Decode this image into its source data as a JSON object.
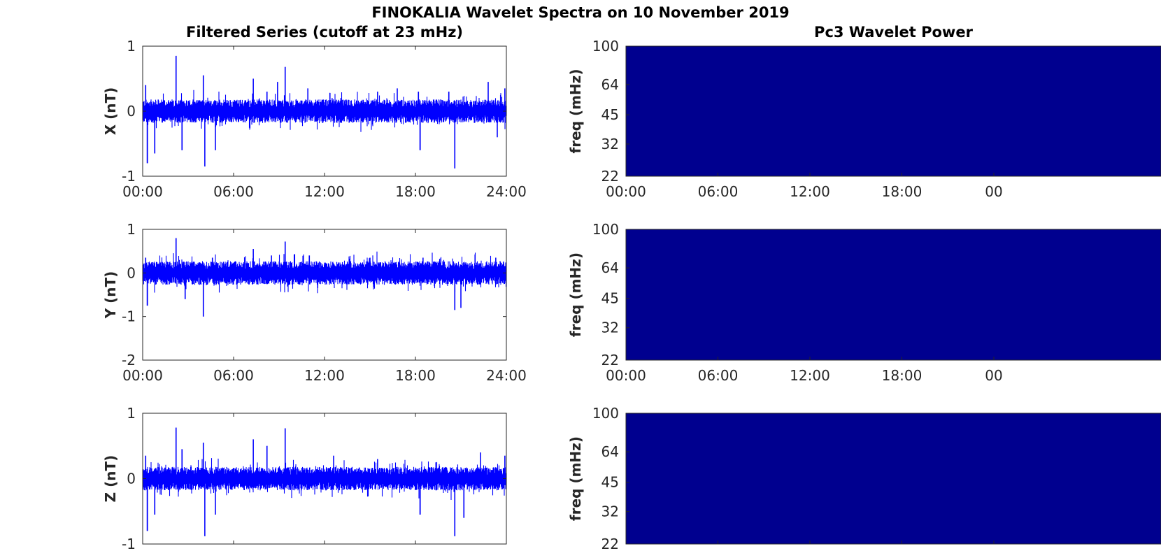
{
  "title": "FINOKALIA Wavelet Spectra on 10 November 2019",
  "left_column_title": "Filtered Series (cutoff at 23 mHz)",
  "right_column_title": "Pc3 Wavelet Power",
  "colors": {
    "series": "#0000ff",
    "power_fill": "#00008f",
    "axis": "#262626"
  },
  "chart_data": [
    {
      "type": "line",
      "component": "X",
      "ylabel": "X (nT)",
      "ylim": [
        -1,
        1
      ],
      "yticks": [
        "1",
        "0",
        "-1"
      ],
      "xticks": [
        "00:00",
        "06:00",
        "12:00",
        "18:00",
        "24:00"
      ],
      "xlim": [
        0,
        24
      ],
      "noise_band": 0.12,
      "spikes": [
        [
          0.2,
          0.4
        ],
        [
          0.3,
          -0.8
        ],
        [
          0.8,
          -0.65
        ],
        [
          2.2,
          0.85
        ],
        [
          2.6,
          -0.6
        ],
        [
          4.0,
          0.55
        ],
        [
          4.1,
          -0.85
        ],
        [
          4.8,
          -0.6
        ],
        [
          7.3,
          0.5
        ],
        [
          8.2,
          0.3
        ],
        [
          8.9,
          0.45
        ],
        [
          9.4,
          0.68
        ],
        [
          10.9,
          0.35
        ],
        [
          12.5,
          0.2
        ],
        [
          15.5,
          0.3
        ],
        [
          16.8,
          0.35
        ],
        [
          18.2,
          0.3
        ],
        [
          18.3,
          -0.6
        ],
        [
          20.2,
          0.3
        ],
        [
          20.6,
          -0.88
        ],
        [
          22.8,
          0.45
        ],
        [
          23.4,
          -0.4
        ],
        [
          23.9,
          0.35
        ]
      ]
    },
    {
      "type": "line",
      "component": "Y",
      "ylabel": "Y (nT)",
      "ylim": [
        -2,
        1
      ],
      "yticks": [
        "1",
        "0",
        "-1",
        "-2"
      ],
      "xticks": [
        "00:00",
        "06:00",
        "12:00",
        "18:00",
        "24:00"
      ],
      "xlim": [
        0,
        24
      ],
      "noise_band": 0.18,
      "spikes": [
        [
          0.2,
          0.35
        ],
        [
          0.3,
          -0.75
        ],
        [
          2.2,
          0.8
        ],
        [
          2.8,
          -0.6
        ],
        [
          4.0,
          -1.0
        ],
        [
          4.6,
          0.35
        ],
        [
          7.3,
          0.55
        ],
        [
          8.5,
          0.4
        ],
        [
          9.4,
          0.72
        ],
        [
          11.0,
          0.4
        ],
        [
          15.0,
          0.35
        ],
        [
          18.5,
          0.35
        ],
        [
          20.6,
          -0.85
        ],
        [
          21.0,
          -0.8
        ],
        [
          23.3,
          0.35
        ]
      ]
    },
    {
      "type": "line",
      "component": "Z",
      "ylabel": "Z (nT)",
      "ylim": [
        -1,
        1
      ],
      "yticks": [
        "1",
        "0",
        "-1"
      ],
      "xticks": [],
      "xlim": [
        0,
        24
      ],
      "noise_band": 0.12,
      "spikes": [
        [
          0.2,
          0.35
        ],
        [
          0.3,
          -0.8
        ],
        [
          0.8,
          -0.55
        ],
        [
          2.2,
          0.78
        ],
        [
          2.6,
          0.45
        ],
        [
          4.0,
          0.55
        ],
        [
          4.1,
          -0.88
        ],
        [
          4.8,
          -0.55
        ],
        [
          7.3,
          0.6
        ],
        [
          8.2,
          0.5
        ],
        [
          9.4,
          0.77
        ],
        [
          12.6,
          0.35
        ],
        [
          15.5,
          0.3
        ],
        [
          18.3,
          -0.55
        ],
        [
          20.6,
          -0.88
        ],
        [
          21.2,
          -0.6
        ],
        [
          22.3,
          0.4
        ],
        [
          23.9,
          0.35
        ]
      ]
    }
  ],
  "spectra": [
    {
      "type": "heatmap",
      "ylabel": "freq (mHz)",
      "yticks": [
        "100",
        "64",
        "45",
        "32",
        "22"
      ],
      "xticks": [
        "00:00",
        "06:00",
        "12:00",
        "18:00",
        "00"
      ]
    },
    {
      "type": "heatmap",
      "ylabel": "freq (mHz)",
      "yticks": [
        "100",
        "64",
        "45",
        "32",
        "22"
      ],
      "xticks": [
        "00:00",
        "06:00",
        "12:00",
        "18:00",
        "00"
      ]
    },
    {
      "type": "heatmap",
      "ylabel": "freq (mHz)",
      "yticks": [
        "100",
        "64",
        "45",
        "32",
        "22"
      ],
      "xticks": []
    }
  ]
}
